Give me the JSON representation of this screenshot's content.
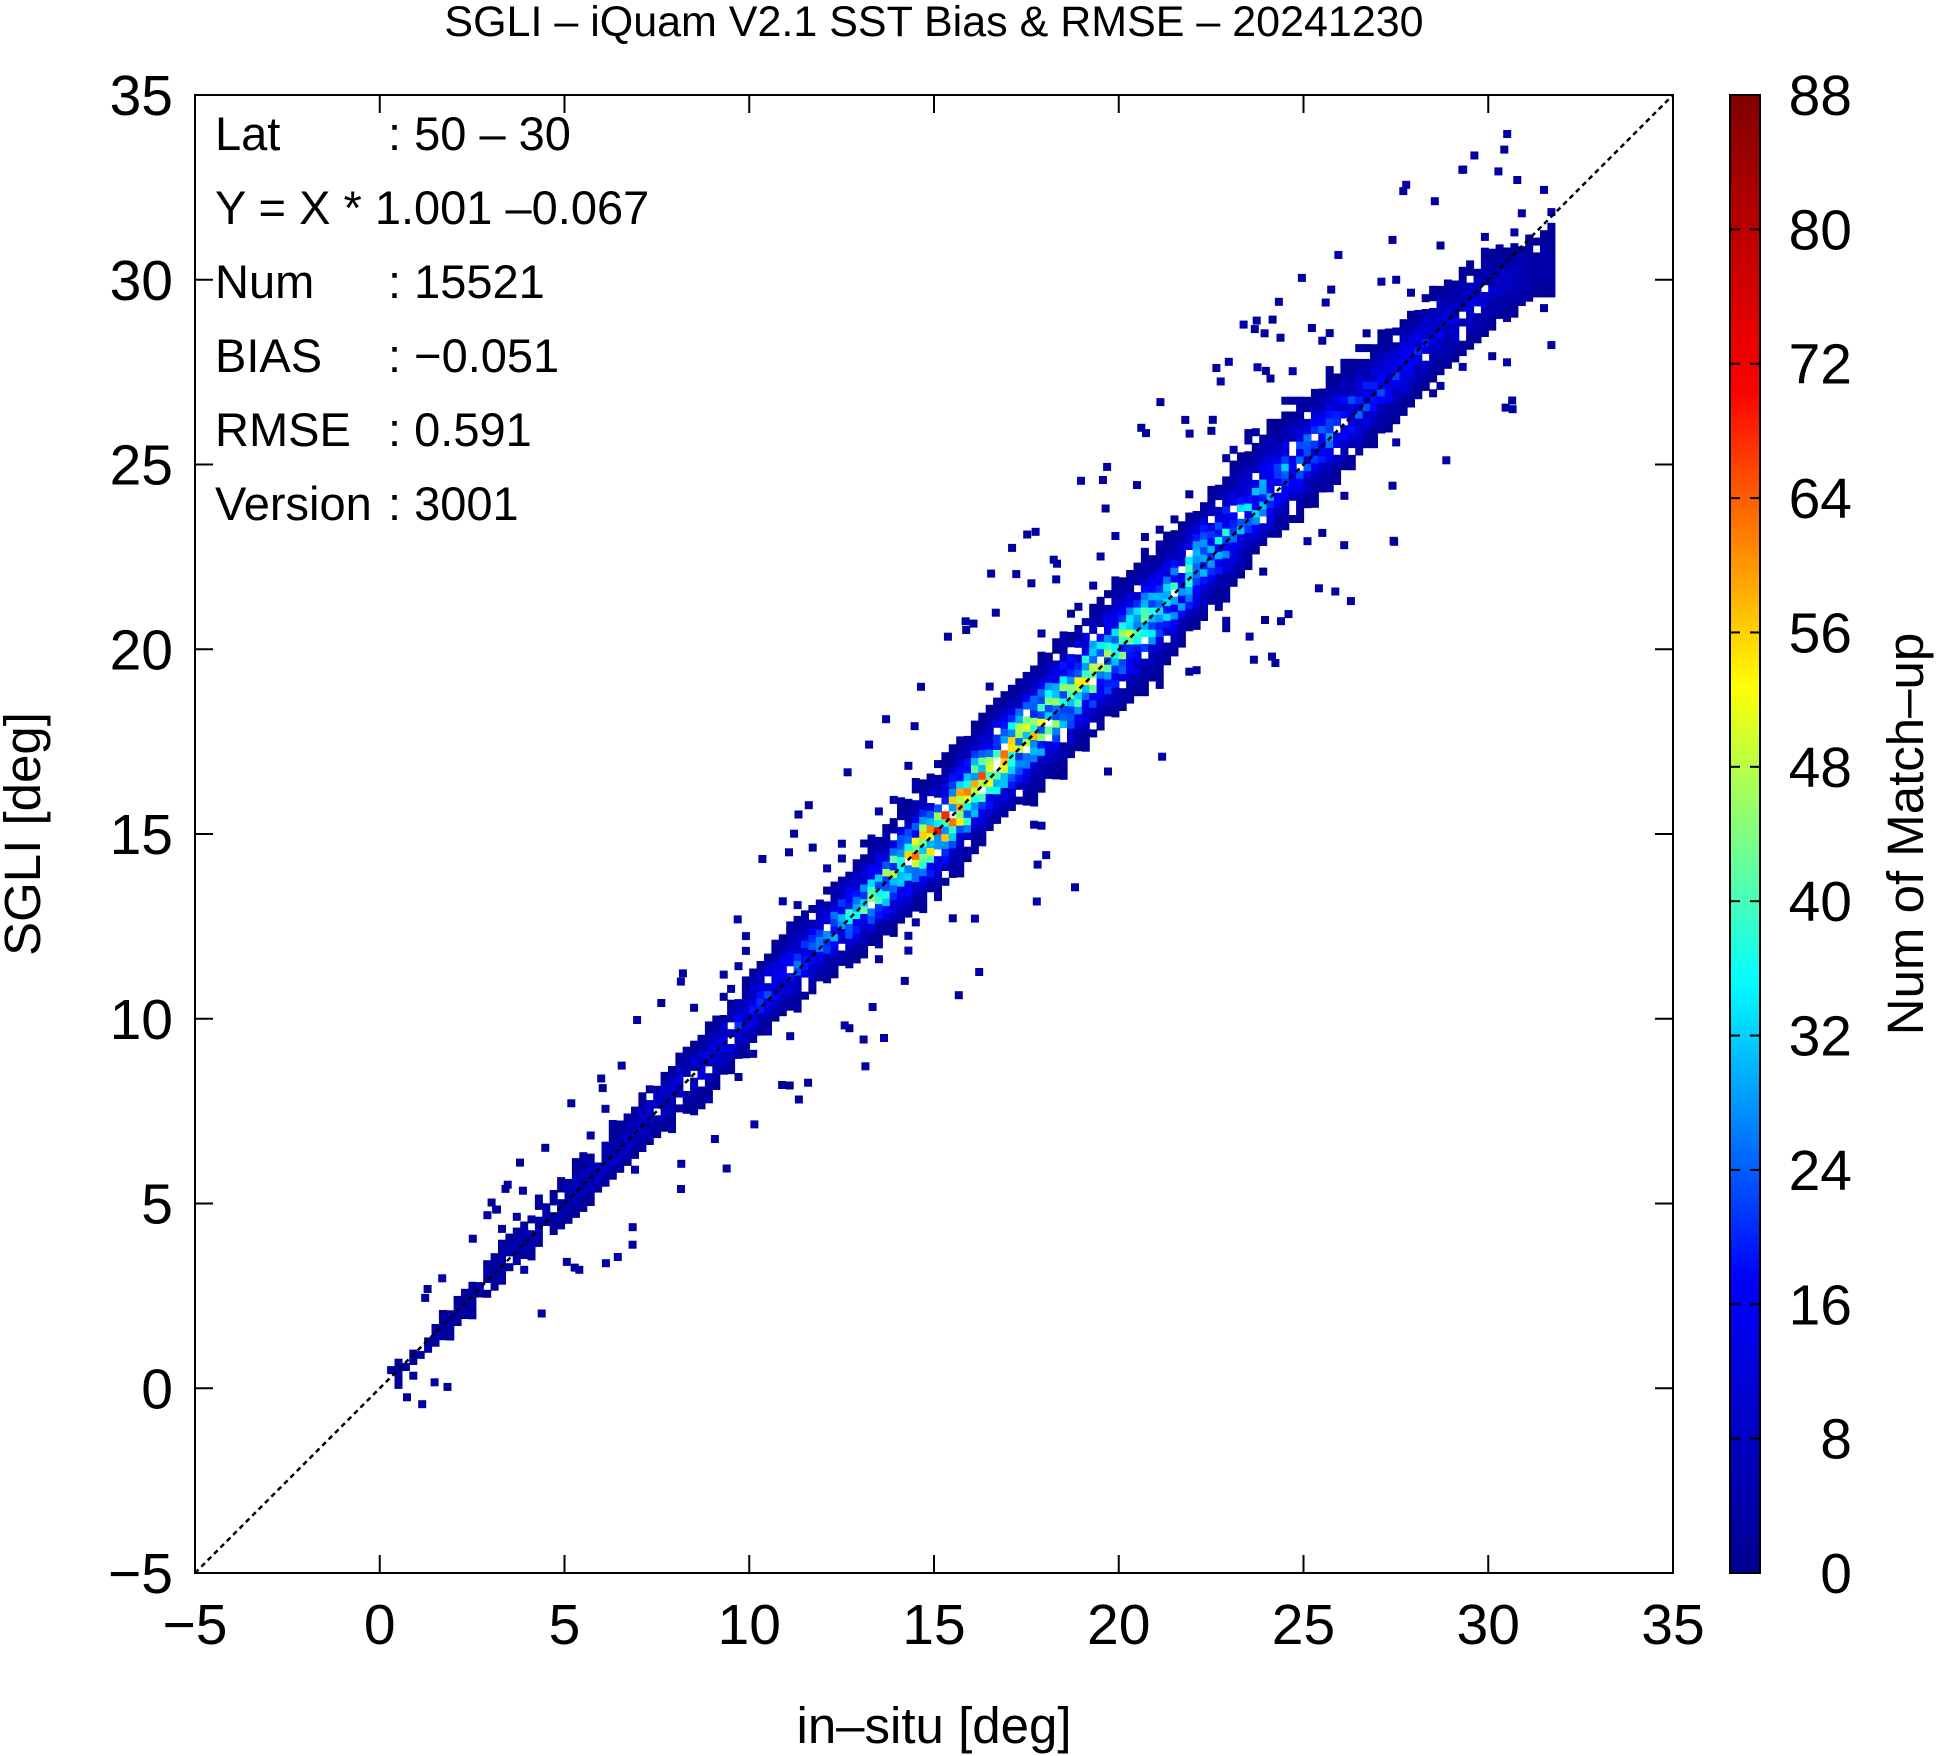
{
  "chart_data": {
    "type": "heatmap",
    "title": "SGLI – iQuam V2.1 SST Bias & RMSE  – 20241230",
    "xlabel": "in–situ [deg]",
    "ylabel": "SGLI [deg]",
    "colorbar_label": "Num of Match–up",
    "xlim": [
      -5,
      35
    ],
    "ylim": [
      -5,
      35
    ],
    "x_ticks": [
      -5,
      0,
      5,
      10,
      15,
      20,
      25,
      30,
      35
    ],
    "x_tick_labels": [
      "−5",
      "0",
      "5",
      "10",
      "15",
      "20",
      "25",
      "30",
      "35"
    ],
    "y_ticks": [
      -5,
      0,
      5,
      10,
      15,
      20,
      25,
      30,
      35
    ],
    "y_tick_labels": [
      "−5",
      "0",
      "5",
      "10",
      "15",
      "20",
      "25",
      "30",
      "35"
    ],
    "colorbar_range": [
      0,
      88
    ],
    "colorbar_ticks": [
      0,
      8,
      16,
      24,
      32,
      40,
      48,
      56,
      64,
      72,
      80,
      88
    ],
    "colorbar_tick_labels": [
      "0",
      "8",
      "16",
      "24",
      "32",
      "40",
      "48",
      "56",
      "64",
      "72",
      "80",
      "88"
    ],
    "colormap": [
      "#00008f",
      "#0000ff",
      "#00ffff",
      "#ffff00",
      "#ff0000",
      "#800000"
    ],
    "one_to_one_line": true,
    "grid": false,
    "stats": [
      {
        "label": "Lat",
        "value": ": 50 – 30"
      },
      {
        "label": "Y = X * 1.001 –0.067",
        "value": ""
      },
      {
        "label": "Num",
        "value": ": 15521"
      },
      {
        "label": "BIAS",
        "value": ": −0.051"
      },
      {
        "label": "RMSE",
        "value": ": 0.591"
      },
      {
        "label": "Version",
        "value": ": 3001"
      }
    ],
    "fit": {
      "slope": 1.001,
      "intercept": -0.067
    },
    "bin_size": 0.2,
    "ridge": [
      [
        0.5,
        0.4
      ],
      [
        1.5,
        1.4
      ],
      [
        3,
        3.1
      ],
      [
        4.5,
        4.6
      ],
      [
        6,
        6.0
      ],
      [
        7.5,
        7.6
      ],
      [
        9,
        9.0
      ],
      [
        10.5,
        10.8
      ],
      [
        12,
        12.2
      ],
      [
        13.5,
        13.5
      ],
      [
        15,
        15.0
      ],
      [
        16.5,
        16.7
      ],
      [
        18,
        18.1
      ],
      [
        19.5,
        19.6
      ],
      [
        21,
        21.0
      ],
      [
        22.5,
        22.7
      ],
      [
        24,
        24.3
      ],
      [
        25.5,
        25.7
      ],
      [
        27,
        27.0
      ],
      [
        28.5,
        28.5
      ],
      [
        30,
        29.6
      ],
      [
        31.2,
        30.3
      ]
    ],
    "spread": [
      [
        0.5,
        0.25
      ],
      [
        5,
        0.5
      ],
      [
        10,
        0.7
      ],
      [
        15,
        1.0
      ],
      [
        20,
        1.1
      ],
      [
        25,
        1.0
      ],
      [
        30,
        0.8
      ]
    ],
    "density": [
      [
        0.5,
        3
      ],
      [
        4,
        6
      ],
      [
        8,
        10
      ],
      [
        12,
        22
      ],
      [
        15,
        50
      ],
      [
        18,
        42
      ],
      [
        21,
        32
      ],
      [
        25,
        22
      ],
      [
        29,
        12
      ],
      [
        31.5,
        4
      ]
    ]
  }
}
